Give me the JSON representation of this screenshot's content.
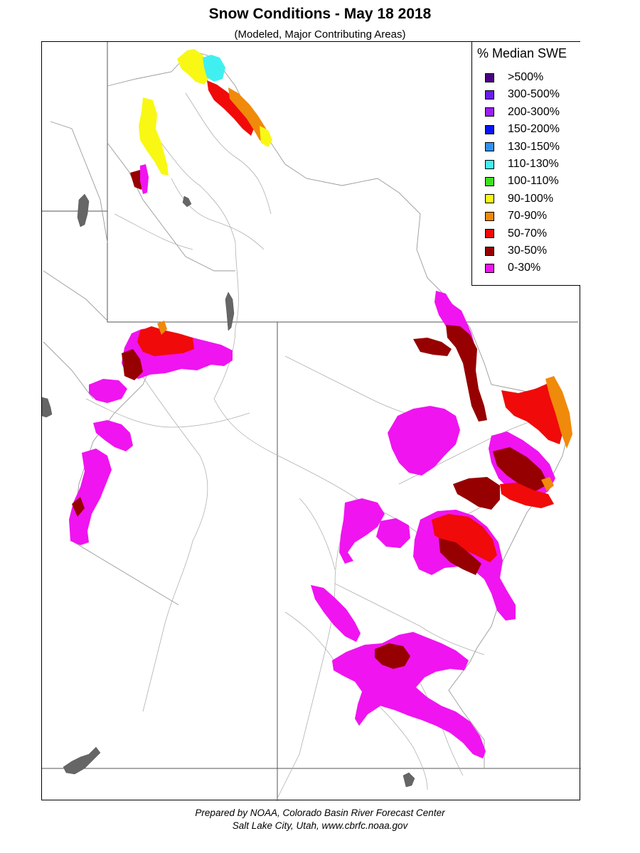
{
  "title": "Snow Conditions - May 18 2018",
  "subtitle": "(Modeled, Major Contributing Areas)",
  "legend": {
    "title": "% Median SWE",
    "items": [
      {
        "label": ">500%",
        "color": "#4b0082"
      },
      {
        "label": "300-500%",
        "color": "#6a1bf0"
      },
      {
        "label": "200-300%",
        "color": "#9a20f2"
      },
      {
        "label": "150-200%",
        "color": "#0a14f5"
      },
      {
        "label": "130-150%",
        "color": "#3191f2"
      },
      {
        "label": "110-130%",
        "color": "#40f0f0"
      },
      {
        "label": "100-110%",
        "color": "#40e020"
      },
      {
        "label": "90-100%",
        "color": "#f8f814"
      },
      {
        "label": "70-90%",
        "color": "#f08a0a"
      },
      {
        "label": "50-70%",
        "color": "#f00a0a"
      },
      {
        "label": "30-50%",
        "color": "#960000"
      },
      {
        "label": "0-30%",
        "color": "#f014f0"
      }
    ]
  },
  "footer": {
    "line1": "Prepared by NOAA, Colorado Basin River Forecast Center",
    "line2": "Salt Lake City, Utah, www.cbrfc.noaa.gov"
  }
}
